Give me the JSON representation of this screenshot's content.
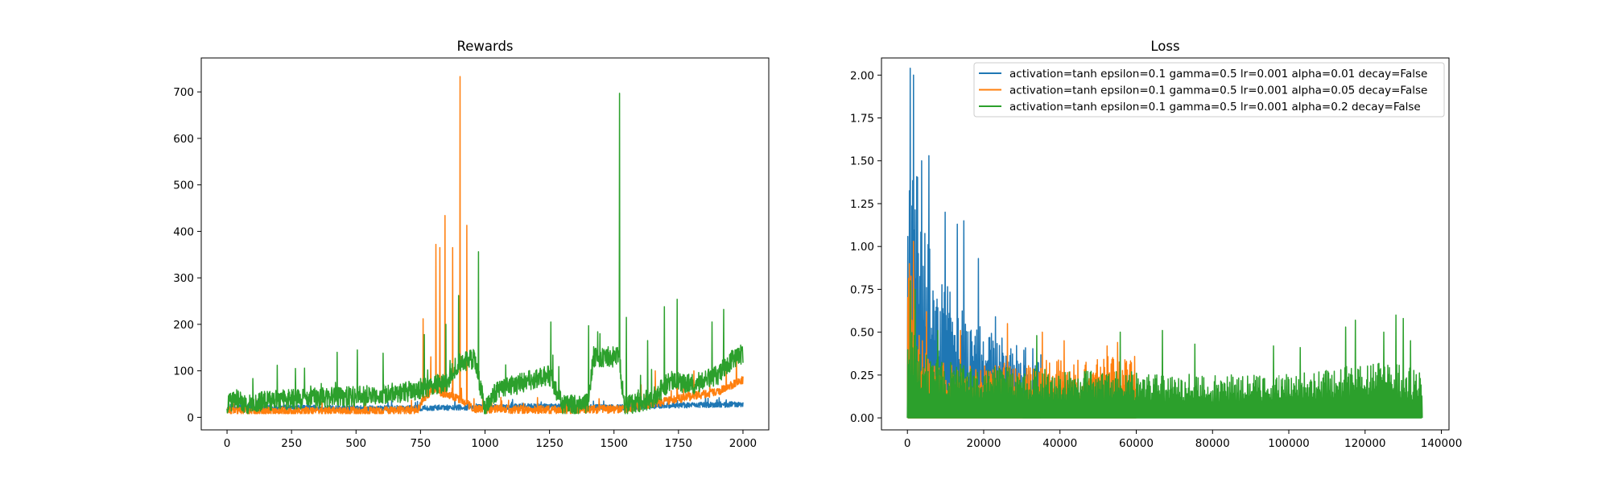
{
  "chart_data": [
    {
      "type": "line",
      "title": "Rewards",
      "xlabel": "",
      "ylabel": "",
      "xlim": [
        -100,
        2100
      ],
      "ylim": [
        -27,
        773
      ],
      "xticks": [
        0,
        250,
        500,
        750,
        1000,
        1250,
        1500,
        1750,
        2000
      ],
      "yticks": [
        0,
        100,
        200,
        300,
        400,
        500,
        600,
        700
      ],
      "grid": false,
      "series": [
        {
          "color": "#1f77b4",
          "x_range": [
            0,
            2000
          ],
          "points": [
            [
              0,
              22
            ],
            [
              250,
              21
            ],
            [
              500,
              19
            ],
            [
              750,
              20
            ],
            [
              1000,
              22
            ],
            [
              1250,
              24
            ],
            [
              1400,
              22
            ],
            [
              1500,
              21
            ],
            [
              1750,
              26
            ],
            [
              2000,
              28
            ]
          ],
          "noise": 6,
          "peaks": [
            [
              1420,
              35
            ],
            [
              1550,
              30
            ],
            [
              1900,
              38
            ]
          ]
        },
        {
          "color": "#ff7f0e",
          "x_range": [
            0,
            2000
          ],
          "points": [
            [
              0,
              14
            ],
            [
              500,
              13
            ],
            [
              740,
              16
            ],
            [
              760,
              40
            ],
            [
              800,
              60
            ],
            [
              900,
              40
            ],
            [
              960,
              18
            ],
            [
              1250,
              16
            ],
            [
              1550,
              18
            ],
            [
              1650,
              30
            ],
            [
              1800,
              45
            ],
            [
              1900,
              55
            ],
            [
              2000,
              80
            ]
          ],
          "noise": 9,
          "peaks": [
            [
              760,
              212
            ],
            [
              790,
              130
            ],
            [
              810,
              372
            ],
            [
              825,
              365
            ],
            [
              845,
              434
            ],
            [
              875,
              365
            ],
            [
              903,
              733
            ],
            [
              930,
              413
            ],
            [
              1605,
              70
            ],
            [
              1660,
              100
            ],
            [
              1745,
              125
            ],
            [
              1810,
              100
            ],
            [
              1935,
              110
            ],
            [
              1975,
              135
            ]
          ]
        },
        {
          "color": "#2ca02c",
          "x_range": [
            0,
            2000
          ],
          "points": [
            [
              0,
              28
            ],
            [
              40,
              40
            ],
            [
              70,
              25
            ],
            [
              150,
              35
            ],
            [
              300,
              40
            ],
            [
              500,
              45
            ],
            [
              700,
              55
            ],
            [
              850,
              75
            ],
            [
              900,
              120
            ],
            [
              960,
              125
            ],
            [
              1000,
              20
            ],
            [
              1050,
              60
            ],
            [
              1250,
              90
            ],
            [
              1300,
              25
            ],
            [
              1400,
              30
            ],
            [
              1420,
              130
            ],
            [
              1520,
              130
            ],
            [
              1540,
              25
            ],
            [
              1650,
              40
            ],
            [
              1720,
              80
            ],
            [
              1800,
              70
            ],
            [
              1900,
              90
            ],
            [
              1970,
              130
            ],
            [
              2000,
              135
            ]
          ],
          "noise": 22,
          "peaks": [
            [
              195,
              112
            ],
            [
              265,
              105
            ],
            [
              427,
              140
            ],
            [
              505,
              145
            ],
            [
              605,
              138
            ],
            [
              765,
              178
            ],
            [
              848,
              200
            ],
            [
              898,
              262
            ],
            [
              975,
              356
            ],
            [
              1255,
              205
            ],
            [
              1402,
              197
            ],
            [
              1445,
              180
            ],
            [
              1522,
              697
            ],
            [
              1548,
              215
            ],
            [
              1630,
              165
            ],
            [
              1695,
              238
            ],
            [
              1745,
              254
            ],
            [
              1880,
              205
            ],
            [
              1925,
              232
            ]
          ]
        }
      ]
    },
    {
      "type": "line",
      "title": "Loss",
      "xlabel": "",
      "ylabel": "",
      "xlim": [
        -6800,
        142000
      ],
      "ylim": [
        -0.07,
        2.1
      ],
      "xticks": [
        0,
        20000,
        40000,
        60000,
        80000,
        100000,
        120000,
        140000
      ],
      "yticks": [
        "0.00",
        "0.25",
        "0.50",
        "0.75",
        "1.00",
        "1.25",
        "1.50",
        "1.75",
        "2.00"
      ],
      "grid": false,
      "legend_position": "upper-right",
      "series": [
        {
          "name": "activation=tanh epsilon=0.1 gamma=0.5 lr=0.001 alpha=0.01 decay=False",
          "color": "#1f77b4",
          "x_range": [
            0,
            35000
          ],
          "points": [
            [
              0,
              1.2
            ],
            [
              1000,
              1.6
            ],
            [
              2000,
              1.7
            ],
            [
              3000,
              1.3
            ],
            [
              5000,
              1.05
            ],
            [
              8000,
              0.9
            ],
            [
              10000,
              0.8
            ],
            [
              13000,
              0.7
            ],
            [
              16000,
              0.6
            ],
            [
              20000,
              0.52
            ],
            [
              25000,
              0.47
            ],
            [
              30000,
              0.42
            ],
            [
              35000,
              0.4
            ]
          ],
          "peaks": [
            [
              800,
              2.04
            ],
            [
              1500,
              2.0
            ],
            [
              3800,
              1.5
            ],
            [
              5600,
              1.53
            ],
            [
              9800,
              1.2
            ],
            [
              13000,
              1.13
            ],
            [
              14800,
              1.15
            ],
            [
              18700,
              0.93
            ],
            [
              23000,
              0.59
            ]
          ]
        },
        {
          "name": "activation=tanh epsilon=0.1 gamma=0.5 lr=0.001 alpha=0.05 decay=False",
          "color": "#ff7f0e",
          "x_range": [
            0,
            60000
          ],
          "points": [
            [
              0,
              0.95
            ],
            [
              1000,
              0.85
            ],
            [
              2000,
              0.7
            ],
            [
              3000,
              0.55
            ],
            [
              4000,
              0.45
            ],
            [
              5000,
              0.38
            ],
            [
              8000,
              0.33
            ],
            [
              15000,
              0.3
            ],
            [
              25000,
              0.32
            ],
            [
              40000,
              0.34
            ],
            [
              50000,
              0.35
            ],
            [
              60000,
              0.38
            ]
          ],
          "peaks": [
            [
              500,
              0.9
            ],
            [
              1500,
              1.03
            ],
            [
              5000,
              0.62
            ],
            [
              14000,
              0.51
            ],
            [
              26300,
              0.55
            ],
            [
              35300,
              0.5
            ],
            [
              41000,
              0.45
            ],
            [
              52300,
              0.42
            ],
            [
              55200,
              0.44
            ]
          ]
        },
        {
          "name": "activation=tanh epsilon=0.1 gamma=0.5 lr=0.001 alpha=0.2 decay=False",
          "color": "#2ca02c",
          "x_range": [
            0,
            135000
          ],
          "points": [
            [
              0,
              0.75
            ],
            [
              1500,
              0.6
            ],
            [
              3000,
              0.45
            ],
            [
              5000,
              0.38
            ],
            [
              10000,
              0.33
            ],
            [
              20000,
              0.3
            ],
            [
              40000,
              0.28
            ],
            [
              60000,
              0.27
            ],
            [
              80000,
              0.25
            ],
            [
              100000,
              0.26
            ],
            [
              115000,
              0.3
            ],
            [
              125000,
              0.33
            ],
            [
              135000,
              0.28
            ]
          ],
          "peaks": [
            [
              800,
              0.8
            ],
            [
              2000,
              0.75
            ],
            [
              8000,
              0.51
            ],
            [
              34000,
              0.48
            ],
            [
              55800,
              0.5
            ],
            [
              66800,
              0.51
            ],
            [
              75300,
              0.43
            ],
            [
              96000,
              0.42
            ],
            [
              103000,
              0.41
            ],
            [
              115000,
              0.53
            ],
            [
              117500,
              0.57
            ],
            [
              125000,
              0.5
            ],
            [
              128000,
              0.6
            ],
            [
              130000,
              0.58
            ],
            [
              132000,
              0.45
            ]
          ],
          "dips": [
            97700
          ]
        }
      ]
    }
  ]
}
